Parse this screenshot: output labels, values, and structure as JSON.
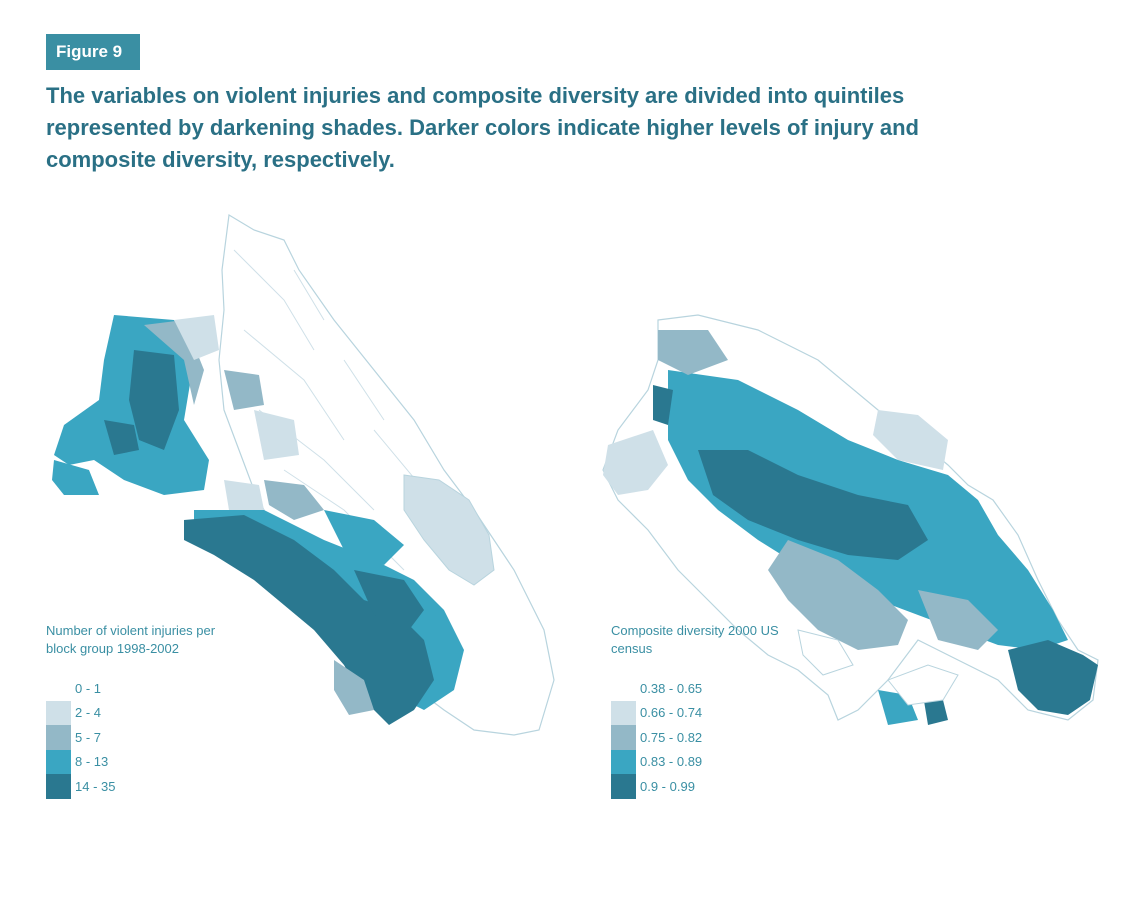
{
  "figure_label": "Figure 9",
  "caption": "The variables on violent injuries and composite diversity are divided into quintiles represented by darkening shades. Darker colors indicate higher levels of injury and composite diversity, respectively.",
  "colors": {
    "q1": "#ffffff",
    "q2": "#cfe0e8",
    "q3": "#93b8c7",
    "q4": "#3aa6c2",
    "q5": "#2a7890",
    "outline": "#b8d4de",
    "accent": "#3a8fa3"
  },
  "maps": [
    {
      "legend_title": "Number of violent injuries per block group 1998-2002",
      "legend": [
        {
          "label": "0 - 1",
          "quintile": 1
        },
        {
          "label": "2 - 4",
          "quintile": 2
        },
        {
          "label": "5 - 7",
          "quintile": 3
        },
        {
          "label": "8 - 13",
          "quintile": 4
        },
        {
          "label": "14 - 35",
          "quintile": 5
        }
      ]
    },
    {
      "legend_title": "Composite diversity 2000 US census",
      "legend": [
        {
          "label": "0.38 - 0.65",
          "quintile": 1
        },
        {
          "label": "0.66 - 0.74",
          "quintile": 2
        },
        {
          "label": "0.75 - 0.82",
          "quintile": 3
        },
        {
          "label": "0.83 - 0.89",
          "quintile": 4
        },
        {
          "label": "0.9 - 0.99",
          "quintile": 5
        }
      ]
    }
  ]
}
